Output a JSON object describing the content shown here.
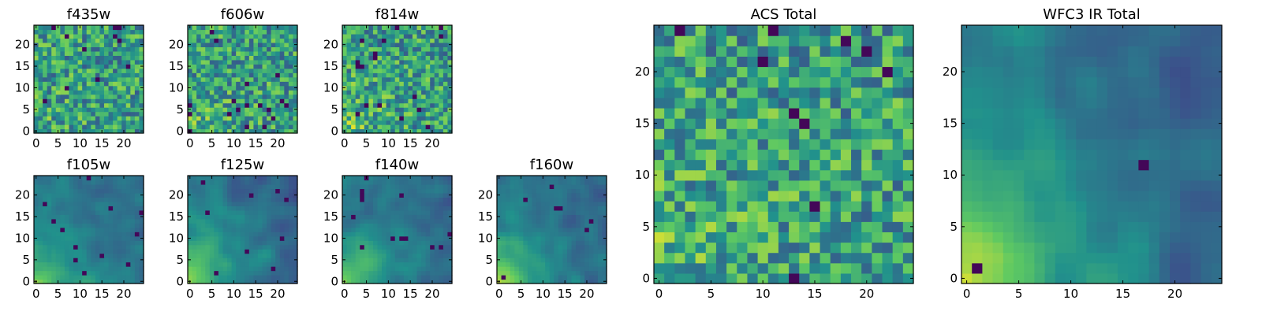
{
  "colormap": "viridis",
  "colormap_stops": [
    "#440154",
    "#3b528b",
    "#21918c",
    "#5ec962",
    "#fde725"
  ],
  "grid_size": 25,
  "chart_data": [
    {
      "type": "heatmap",
      "title": "f435w",
      "kind": "noisy",
      "seed": 11,
      "gradient": 0.1,
      "dark": 0.02,
      "xticks": [
        0,
        5,
        10,
        15,
        20
      ],
      "yticks": [
        0,
        5,
        10,
        15,
        20
      ],
      "xlim": [
        0,
        25
      ],
      "ylim": [
        0,
        25
      ]
    },
    {
      "type": "heatmap",
      "title": "f606w",
      "kind": "noisy",
      "seed": 23,
      "gradient": 0.16,
      "dark": 0.025,
      "xticks": [
        0,
        5,
        10,
        15,
        20
      ],
      "yticks": [
        0,
        5,
        10,
        15,
        20
      ],
      "xlim": [
        0,
        25
      ],
      "ylim": [
        0,
        25
      ]
    },
    {
      "type": "heatmap",
      "title": "f814w",
      "kind": "noisy",
      "seed": 37,
      "gradient": 0.2,
      "dark": 0.03,
      "xticks": [
        0,
        5,
        10,
        15,
        20
      ],
      "yticks": [
        0,
        5,
        10,
        15,
        20
      ],
      "xlim": [
        0,
        25
      ],
      "ylim": [
        0,
        25
      ]
    },
    {
      "type": "heatmap",
      "title": "f105w",
      "kind": "smooth",
      "seed": 41,
      "gradient": 0.55,
      "dark": 0.015,
      "xticks": [
        0,
        5,
        10,
        15,
        20
      ],
      "yticks": [
        0,
        5,
        10,
        15,
        20
      ],
      "xlim": [
        0,
        25
      ],
      "ylim": [
        0,
        25
      ]
    },
    {
      "type": "heatmap",
      "title": "f125w",
      "kind": "smooth",
      "seed": 53,
      "gradient": 0.6,
      "dark": 0.015,
      "xticks": [
        0,
        5,
        10,
        15,
        20
      ],
      "yticks": [
        0,
        5,
        10,
        15,
        20
      ],
      "xlim": [
        0,
        25
      ],
      "ylim": [
        0,
        25
      ]
    },
    {
      "type": "heatmap",
      "title": "f140w",
      "kind": "smooth",
      "seed": 67,
      "gradient": 0.6,
      "dark": 0.02,
      "xticks": [
        0,
        5,
        10,
        15,
        20
      ],
      "yticks": [
        0,
        5,
        10,
        15,
        20
      ],
      "xlim": [
        0,
        25
      ],
      "ylim": [
        0,
        25
      ]
    },
    {
      "type": "heatmap",
      "title": "f160w",
      "kind": "smooth",
      "seed": 79,
      "gradient": 0.75,
      "dark": 0.02,
      "xticks": [
        0,
        5,
        10,
        15,
        20
      ],
      "yticks": [
        0,
        5,
        10,
        15,
        20
      ],
      "xlim": [
        0,
        25
      ],
      "ylim": [
        0,
        25
      ]
    },
    {
      "type": "heatmap",
      "title": "ACS Total",
      "kind": "noisy",
      "seed": 97,
      "gradient": 0.18,
      "dark": 0.025,
      "xticks": [
        0,
        5,
        10,
        15,
        20
      ],
      "yticks": [
        0,
        5,
        10,
        15,
        20
      ],
      "xlim": [
        0,
        25
      ],
      "ylim": [
        0,
        25
      ]
    },
    {
      "type": "heatmap",
      "title": "WFC3 IR Total",
      "kind": "smooth",
      "seed": 131,
      "gradient": 0.8,
      "dark": 0.01,
      "xticks": [
        0,
        5,
        10,
        15,
        20
      ],
      "yticks": [
        0,
        5,
        10,
        15,
        20
      ],
      "xlim": [
        0,
        25
      ],
      "ylim": [
        0,
        25
      ]
    }
  ]
}
